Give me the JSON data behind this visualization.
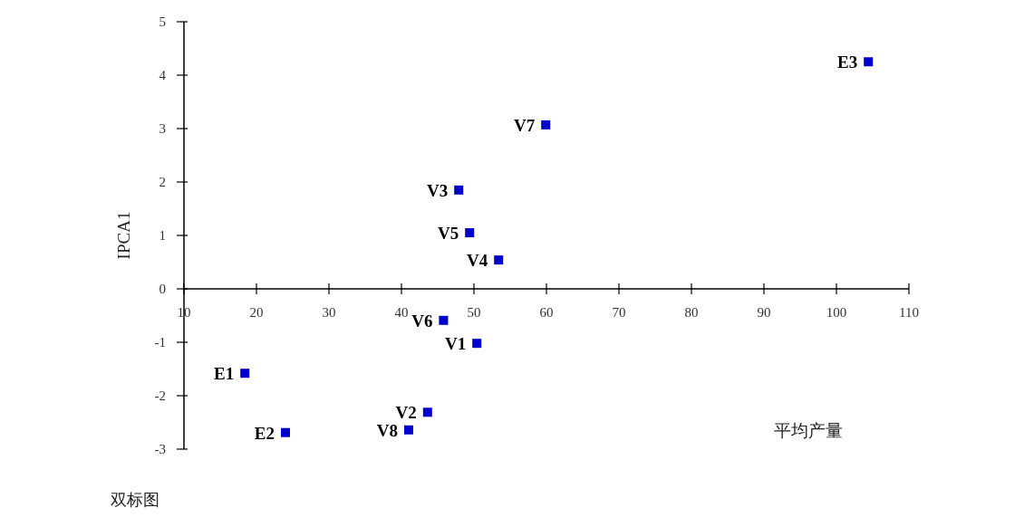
{
  "chart_data": {
    "type": "scatter",
    "xlabel": "平均产量",
    "ylabel": "IPCA1",
    "x": [
      104.4,
      59.9,
      47.9,
      49.4,
      53.4,
      45.8,
      50.4,
      18.4,
      43.6,
      41.0,
      24.0
    ],
    "values": [
      4.25,
      3.07,
      1.85,
      1.05,
      0.54,
      -0.59,
      -1.02,
      -1.58,
      -2.31,
      -2.64,
      -2.69
    ],
    "color": "#0000cc",
    "marker": "square",
    "xlim": [
      10,
      110
    ],
    "xticks": [
      10,
      20,
      30,
      40,
      50,
      60,
      70,
      80,
      90,
      100,
      110
    ],
    "ylim": [
      -3,
      5
    ],
    "yticks": [
      -3,
      -2,
      -1,
      0,
      1,
      2,
      3,
      4,
      5
    ],
    "grid": false,
    "annotations": [
      {
        "text": "E3",
        "x": 104.4,
        "y": 4.25
      },
      {
        "text": "V7",
        "x": 59.9,
        "y": 3.07
      },
      {
        "text": "V3",
        "x": 47.9,
        "y": 1.85
      },
      {
        "text": "V5",
        "x": 49.4,
        "y": 1.05
      },
      {
        "text": "V4",
        "x": 53.4,
        "y": 0.54
      },
      {
        "text": "V6",
        "x": 45.8,
        "y": -0.59
      },
      {
        "text": "V1",
        "x": 50.4,
        "y": -1.02
      },
      {
        "text": "E1",
        "x": 18.4,
        "y": -1.58
      },
      {
        "text": "V2",
        "x": 43.6,
        "y": -2.31
      },
      {
        "text": "V8",
        "x": 41.0,
        "y": -2.64
      },
      {
        "text": "E2",
        "x": 24.0,
        "y": -2.69
      },
      "双标图"
    ]
  }
}
